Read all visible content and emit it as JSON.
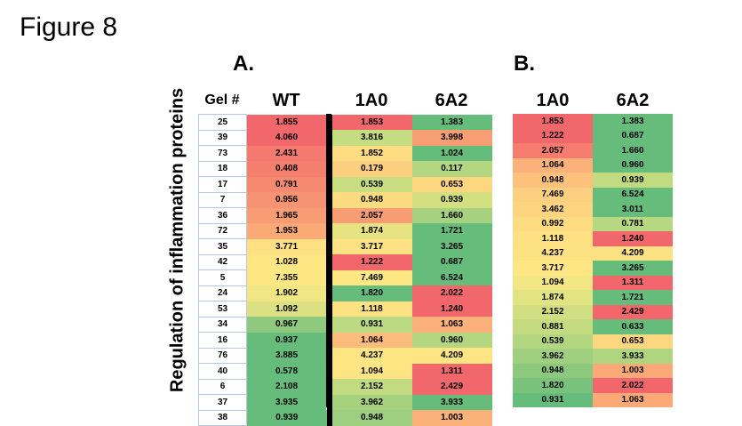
{
  "figure_title": "Figure 8",
  "panel_a_label": "A.",
  "panel_b_label": "B.",
  "ylabel": "Regulation of inflammation proteins",
  "headers": {
    "gel": "Gel #",
    "wt": "WT",
    "a_1a0": "1A0",
    "a_6a2": "6A2",
    "b_1a0": "1A0",
    "b_6a2": "6A2"
  },
  "chart_data": [
    {
      "type": "heatmap",
      "title": "A.",
      "ylabel": "Regulation of inflammation proteins",
      "columns": [
        "Gel #",
        "WT",
        "1A0",
        "6A2"
      ],
      "rows": [
        {
          "gel": "25",
          "wt": "1.855",
          "a1": "1.853",
          "a2": "1.383",
          "wt_c": "#f2676b",
          "a1_c": "#f2676b",
          "a2_c": "#66bd7b"
        },
        {
          "gel": "39",
          "wt": "4.060",
          "a1": "3.816",
          "a2": "3.998",
          "wt_c": "#f2676b",
          "a1_c": "#c6dc81",
          "a2_c": "#f79e75"
        },
        {
          "gel": "73",
          "wt": "2.431",
          "a1": "1.852",
          "a2": "1.024",
          "wt_c": "#f4796e",
          "a1_c": "#fddc82",
          "a2_c": "#66bd7b"
        },
        {
          "gel": "18",
          "wt": "0.408",
          "a1": "0.179",
          "a2": "0.117",
          "wt_c": "#f57f6f",
          "a1_c": "#fbcf7f",
          "a2_c": "#b3d781"
        },
        {
          "gel": "17",
          "wt": "0.791",
          "a1": "0.539",
          "a2": "0.653",
          "wt_c": "#f68a71",
          "a1_c": "#c9dd81",
          "a2_c": "#fdd680"
        },
        {
          "gel": "7",
          "wt": "0.956",
          "a1": "0.948",
          "a2": "0.939",
          "wt_c": "#f69372",
          "a1_c": "#fcdb81",
          "a2_c": "#d4df82"
        },
        {
          "gel": "36",
          "wt": "1.965",
          "a1": "2.057",
          "a2": "1.660",
          "wt_c": "#f89c74",
          "a1_c": "#f89c74",
          "a2_c": "#a6d27f"
        },
        {
          "gel": "72",
          "wt": "1.953",
          "a1": "1.874",
          "a2": "1.721",
          "wt_c": "#fba977",
          "a1_c": "#e7e383",
          "a2_c": "#66bd7b"
        },
        {
          "gel": "35",
          "wt": "3.771",
          "a1": "3.717",
          "a2": "3.265",
          "wt_c": "#fde183",
          "a1_c": "#fde183",
          "a2_c": "#66bd7b"
        },
        {
          "gel": "42",
          "wt": "1.028",
          "a1": "1.222",
          "a2": "0.687",
          "wt_c": "#fde683",
          "a1_c": "#f2676b",
          "a2_c": "#66bd7b"
        },
        {
          "gel": "5",
          "wt": "7.355",
          "a1": "7.469",
          "a2": "6.524",
          "wt_c": "#fde783",
          "a1_c": "#fde783",
          "a2_c": "#66bd7b"
        },
        {
          "gel": "24",
          "wt": "1.902",
          "a1": "1.820",
          "a2": "2.022",
          "wt_c": "#f1e684",
          "a1_c": "#66bd7b",
          "a2_c": "#f2676b"
        },
        {
          "gel": "53",
          "wt": "1.092",
          "a1": "1.118",
          "a2": "1.240",
          "wt_c": "#dbe182",
          "a1_c": "#fde283",
          "a2_c": "#f2676b"
        },
        {
          "gel": "34",
          "wt": "0.967",
          "a1": "0.931",
          "a2": "1.063",
          "wt_c": "#8ec97e",
          "a1_c": "#bcda81",
          "a2_c": "#fbb179"
        },
        {
          "gel": "16",
          "wt": "0.937",
          "a1": "1.064",
          "a2": "0.960",
          "wt_c": "#66bd7b",
          "a1_c": "#fcbc7b",
          "a2_c": "#b3d781"
        },
        {
          "gel": "76",
          "wt": "3.885",
          "a1": "4.237",
          "a2": "4.209",
          "wt_c": "#66bd7b",
          "a1_c": "#fee583",
          "a2_c": "#fee583"
        },
        {
          "gel": "40",
          "wt": "0.578",
          "a1": "1.094",
          "a2": "1.311",
          "wt_c": "#66bd7b",
          "a1_c": "#fee583",
          "a2_c": "#f2676b"
        },
        {
          "gel": "6",
          "wt": "2.108",
          "a1": "2.152",
          "a2": "2.429",
          "wt_c": "#66bd7b",
          "a1_c": "#c2db81",
          "a2_c": "#f2676b"
        },
        {
          "gel": "37",
          "wt": "3.935",
          "a1": "3.962",
          "a2": "3.933",
          "wt_c": "#66bd7b",
          "a1_c": "#a6d27f",
          "a2_c": "#66bd7b"
        },
        {
          "gel": "38",
          "wt": "0.939",
          "a1": "0.948",
          "a2": "1.003",
          "wt_c": "#66bd7b",
          "a1_c": "#9ece7f",
          "a2_c": "#fbb27a"
        }
      ]
    },
    {
      "type": "heatmap",
      "title": "B.",
      "columns": [
        "1A0",
        "6A2"
      ],
      "rows": [
        {
          "b1": "1.853",
          "b2": "1.383",
          "b1_c": "#f2676b",
          "b2_c": "#66bd7b"
        },
        {
          "b1": "1.222",
          "b2": "0.687",
          "b1_c": "#f2676b",
          "b2_c": "#66bd7b"
        },
        {
          "b1": "2.057",
          "b2": "1.660",
          "b1_c": "#f57c6f",
          "b2_c": "#66bd7b"
        },
        {
          "b1": "1.064",
          "b2": "0.960",
          "b1_c": "#fbb179",
          "b2_c": "#66bd7b"
        },
        {
          "b1": "0.948",
          "b2": "0.939",
          "b1_c": "#fcc17c",
          "b2_c": "#c2db81"
        },
        {
          "b1": "7.469",
          "b2": "6.524",
          "b1_c": "#fcd07f",
          "b2_c": "#66bd7b"
        },
        {
          "b1": "3.462",
          "b2": "3.011",
          "b1_c": "#fdd580",
          "b2_c": "#66bd7b"
        },
        {
          "b1": "0.992",
          "b2": "0.781",
          "b1_c": "#fddb81",
          "b2_c": "#b6d880"
        },
        {
          "b1": "1.118",
          "b2": "1.240",
          "b1_c": "#fde182",
          "b2_c": "#f2676b"
        },
        {
          "b1": "4.237",
          "b2": "4.209",
          "b1_c": "#fde283",
          "b2_c": "#fde283"
        },
        {
          "b1": "3.717",
          "b2": "3.265",
          "b1_c": "#fde683",
          "b2_c": "#66bd7b"
        },
        {
          "b1": "1.094",
          "b2": "1.311",
          "b1_c": "#f2e784",
          "b2_c": "#f2676b"
        },
        {
          "b1": "1.874",
          "b2": "1.721",
          "b1_c": "#e2e383",
          "b2_c": "#66bd7b"
        },
        {
          "b1": "2.152",
          "b2": "2.429",
          "b1_c": "#d2de82",
          "b2_c": "#f2676b"
        },
        {
          "b1": "0.881",
          "b2": "0.633",
          "b1_c": "#c3db81",
          "b2_c": "#66bd7b"
        },
        {
          "b1": "0.539",
          "b2": "0.653",
          "b1_c": "#b3d680",
          "b2_c": "#fdd680"
        },
        {
          "b1": "3.962",
          "b2": "3.933",
          "b1_c": "#9fcf7f",
          "b2_c": "#b0d580"
        },
        {
          "b1": "0.948",
          "b2": "1.003",
          "b1_c": "#8cc87e",
          "b2_c": "#fbaa77"
        },
        {
          "b1": "1.820",
          "b2": "2.022",
          "b1_c": "#78c27c",
          "b2_c": "#f2676b"
        },
        {
          "b1": "0.931",
          "b2": "1.063",
          "b1_c": "#66bd7b",
          "b2_c": "#fbaa77"
        }
      ]
    }
  ]
}
